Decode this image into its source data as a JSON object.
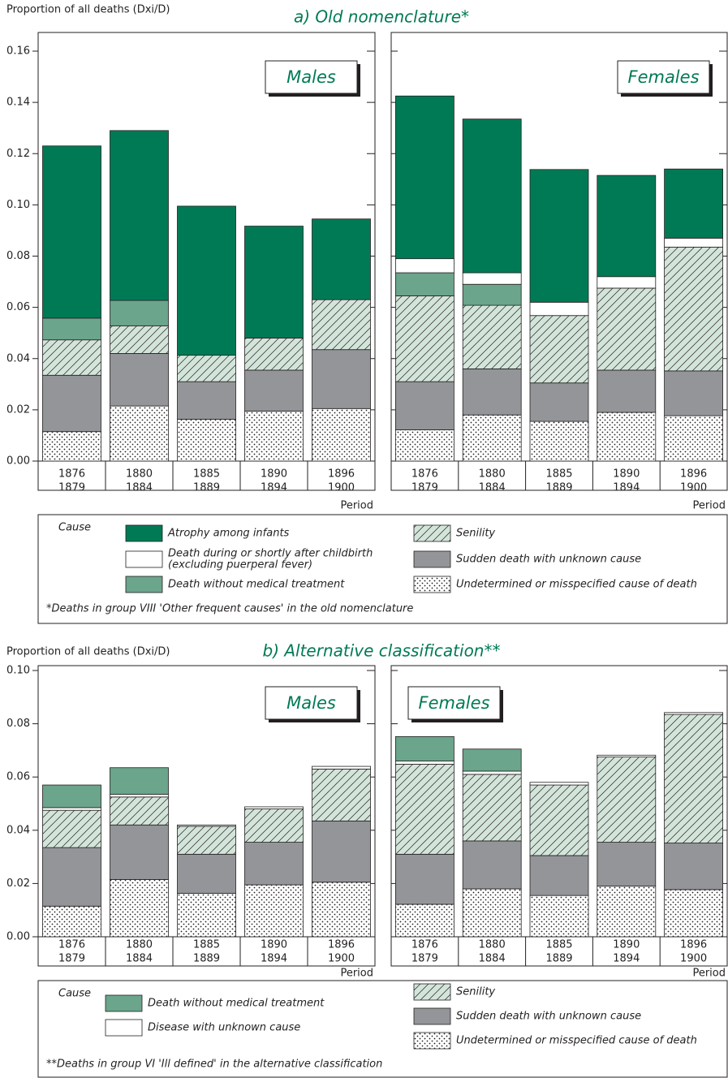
{
  "sections": [
    {
      "title": "a) Old nomenclature*",
      "legend_title": "Cause",
      "note": "*Deaths in group VIII 'Other frequent causes' in the old nomenclature"
    },
    {
      "title": "b) Alternative classification**",
      "legend_title": "Cause",
      "note": "**Deaths in group VI 'Ill defined' in the alternative classification"
    }
  ],
  "chart_data": [
    {
      "type": "bar",
      "stacked": true,
      "title": "Males",
      "y_label": "Proportion of all deaths (Dxi/D)",
      "x_label": "Period",
      "categories": [
        [
          "1876",
          "1879"
        ],
        [
          "1880",
          "1884"
        ],
        [
          "1885",
          "1889"
        ],
        [
          "1890",
          "1894"
        ],
        [
          "1896",
          "1900"
        ]
      ],
      "ylim": [
        0,
        0.16
      ],
      "yticks": [
        {
          "value": 0,
          "label": "0.00"
        },
        0.02,
        0.04,
        0.06,
        0.08,
        {
          "value": 0.1,
          "label": "0.10"
        },
        0.12,
        0.14,
        0.16
      ],
      "series": [
        {
          "name": "Undetermined or misspecified cause of death",
          "color": "#ffffff",
          "pattern": "dots",
          "values": [
            0.0115,
            0.0215,
            0.0163,
            0.0195,
            0.0205
          ]
        },
        {
          "name": "Sudden death with unknown cause",
          "color": "#939598",
          "values": [
            0.022,
            0.0205,
            0.0147,
            0.016,
            0.023
          ]
        },
        {
          "name": "Senility",
          "color": "#d3e5da",
          "pattern": "hatch",
          "values": [
            0.0138,
            0.0108,
            0.0103,
            0.0125,
            0.0195
          ]
        },
        {
          "name": "Death without medical treatment",
          "color": "#6aa58c",
          "values": [
            0.0085,
            0.0099,
            0,
            0,
            0
          ]
        },
        {
          "name": [
            "Death during or shortly after childbirth",
            "(excluding puerperal fever)"
          ],
          "color": "#ffffff",
          "values": [
            0,
            0,
            0,
            0,
            0
          ]
        },
        {
          "name": "Atrophy among infants",
          "color": "#007a55",
          "values": [
            0.0672,
            0.0663,
            0.0582,
            0.0437,
            0.0315
          ]
        }
      ]
    },
    {
      "type": "bar",
      "stacked": true,
      "title": "Females",
      "x_label": "Period",
      "categories": [
        [
          "1876",
          "1879"
        ],
        [
          "1880",
          "1884"
        ],
        [
          "1885",
          "1889"
        ],
        [
          "1890",
          "1894"
        ],
        [
          "1896",
          "1900"
        ]
      ],
      "ylim": [
        0,
        0.16
      ],
      "yticks": [
        0,
        0.02,
        0.04,
        0.06,
        0.08,
        0.1,
        0.12,
        0.14,
        0.16
      ],
      "series": [
        {
          "name": "Undetermined or misspecified cause of death",
          "color": "#ffffff",
          "pattern": "dots",
          "values": [
            0.0122,
            0.018,
            0.0155,
            0.019,
            0.0177
          ]
        },
        {
          "name": "Sudden death with unknown cause",
          "color": "#939598",
          "values": [
            0.0188,
            0.018,
            0.015,
            0.0165,
            0.0175
          ]
        },
        {
          "name": "Senility",
          "color": "#d3e5da",
          "pattern": "hatch",
          "values": [
            0.0335,
            0.0248,
            0.0263,
            0.032,
            0.0483
          ]
        },
        {
          "name": "Death without medical treatment",
          "color": "#6aa58c",
          "values": [
            0.009,
            0.0082,
            0,
            0,
            0
          ]
        },
        {
          "name": [
            "Death during or shortly after childbirth",
            "(excluding puerperal fever)"
          ],
          "color": "#ffffff",
          "values": [
            0.0055,
            0.0045,
            0.0052,
            0.0045,
            0.0035
          ]
        },
        {
          "name": "Atrophy among infants",
          "color": "#007a55",
          "values": [
            0.0635,
            0.06,
            0.0518,
            0.0395,
            0.027
          ]
        }
      ]
    },
    {
      "type": "bar",
      "stacked": true,
      "title": "Males",
      "y_label": "Proportion of all deaths (Dxi/D)",
      "x_label": "Period",
      "categories": [
        [
          "1876",
          "1879"
        ],
        [
          "1880",
          "1884"
        ],
        [
          "1885",
          "1889"
        ],
        [
          "1890",
          "1894"
        ],
        [
          "1896",
          "1900"
        ]
      ],
      "ylim": [
        0,
        0.1
      ],
      "yticks": [
        {
          "value": 0,
          "label": "0.00"
        },
        0.02,
        0.04,
        0.06,
        0.08,
        {
          "value": 0.1,
          "label": "0.10"
        }
      ],
      "series": [
        {
          "name": "Undetermined or misspecified cause of death",
          "color": "#ffffff",
          "pattern": "dots",
          "values": [
            0.0115,
            0.0215,
            0.0163,
            0.0195,
            0.0205
          ]
        },
        {
          "name": "Sudden death with unknown cause",
          "color": "#939598",
          "values": [
            0.022,
            0.0205,
            0.0147,
            0.016,
            0.023
          ]
        },
        {
          "name": "Senility",
          "color": "#d3e5da",
          "pattern": "hatch",
          "values": [
            0.014,
            0.0105,
            0.0105,
            0.0125,
            0.0195
          ]
        },
        {
          "name": "Disease with unknown cause",
          "color": "#ffffff",
          "values": [
            0.001,
            0.001,
            0.0005,
            0.0008,
            0.001
          ]
        },
        {
          "name": "Death without medical treatment",
          "color": "#6aa58c",
          "values": [
            0.0085,
            0.01,
            0,
            0,
            0
          ]
        }
      ]
    },
    {
      "type": "bar",
      "stacked": true,
      "title": "Females",
      "x_label": "Period",
      "categories": [
        [
          "1876",
          "1879"
        ],
        [
          "1880",
          "1884"
        ],
        [
          "1885",
          "1889"
        ],
        [
          "1890",
          "1894"
        ],
        [
          "1896",
          "1900"
        ]
      ],
      "ylim": [
        0,
        0.1
      ],
      "yticks": [
        0,
        0.02,
        0.04,
        0.06,
        0.08,
        0.1
      ],
      "series": [
        {
          "name": "Undetermined or misspecified cause of death",
          "color": "#ffffff",
          "pattern": "dots",
          "values": [
            0.0122,
            0.018,
            0.0155,
            0.019,
            0.0177
          ]
        },
        {
          "name": "Sudden death with unknown cause",
          "color": "#939598",
          "values": [
            0.0188,
            0.018,
            0.015,
            0.0165,
            0.0175
          ]
        },
        {
          "name": "Senility",
          "color": "#d3e5da",
          "pattern": "hatch",
          "values": [
            0.0338,
            0.025,
            0.0265,
            0.032,
            0.0483
          ]
        },
        {
          "name": "Disease with unknown cause",
          "color": "#ffffff",
          "values": [
            0.0012,
            0.0012,
            0.001,
            0.0007,
            0.0007
          ]
        },
        {
          "name": "Death without medical treatment",
          "color": "#6aa58c",
          "values": [
            0.0092,
            0.0083,
            0,
            0,
            0
          ]
        }
      ]
    }
  ]
}
